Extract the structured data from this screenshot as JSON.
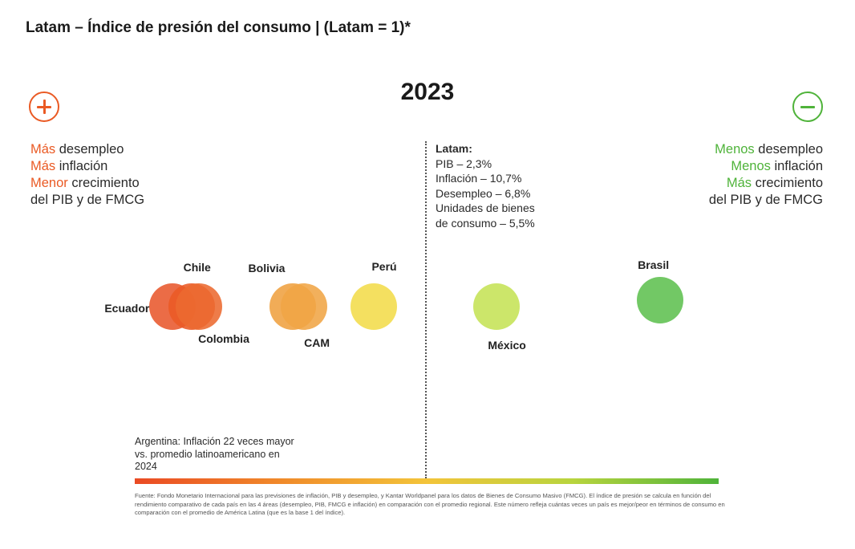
{
  "title": "Latam – Índice de presión del consumo |  (Latam = 1)*",
  "year": "2023",
  "legend_left": {
    "line1_accent": "Más",
    "line1_rest": " desempleo",
    "line2_accent": "Más",
    "line2_rest": " inflación",
    "line3_accent": "Menor",
    "line3_rest": " crecimiento",
    "line4": "del PIB y de FMCG"
  },
  "legend_right": {
    "line1_accent": "Menos",
    "line1_rest": " desempleo",
    "line2_accent": "Menos",
    "line2_rest": " inflación",
    "line3_accent": "Más",
    "line3_rest": " crecimiento",
    "line4": "del PIB y de FMCG"
  },
  "latam": {
    "label": "Latam:",
    "pib": "PIB – 2,3%",
    "inflacion": "Inflación – 10,7%",
    "desempleo": "Desempleo – 6,8%",
    "unidades_1": "Unidades de bienes",
    "unidades_2": "de consumo – 5,5%"
  },
  "argentina_note": "Argentina: Inflación 22 veces mayor vs. promedio latinoamericano en 2024",
  "source": "Fuente: Fondo Monetario Internacional para las previsiones de inflación, PIB y desempleo, y Kantar Worldpanel para los datos de Bienes de Consumo Masivo (FMCG). El índice de presión se calcula en función del rendimiento comparativo de cada país en las 4 áreas (desempleo, PIB, FMCG e inflación) en comparación con el promedio regional. Este número refleja cuántas veces un país es mejor/peor en términos de consumo en comparación con el promedio de América Latina (que es la base 1 del índice).",
  "colors": {
    "negative": "#ea5a24",
    "positive": "#4fb33a"
  },
  "chart_data": {
    "type": "scatter",
    "xlim": [
      0,
      1
    ],
    "x_axis_note": "horizontal position relative to Latam = 1 (left: more pressure, right: less pressure); center line = Latam",
    "points": [
      {
        "name": "Ecuador",
        "x": 0.065,
        "y": 0.0,
        "color": "#e8582c"
      },
      {
        "name": "Chile",
        "x": 0.097,
        "y": 0.0,
        "color": "#eb5a25"
      },
      {
        "name": "Colombia",
        "x": 0.11,
        "y": 0.0,
        "color": "#ec6a30"
      },
      {
        "name": "Bolivia",
        "x": 0.27,
        "y": 0.0,
        "color": "#efa040"
      },
      {
        "name": "CAM",
        "x": 0.29,
        "y": 0.0,
        "color": "#f0a545"
      },
      {
        "name": "Perú",
        "x": 0.41,
        "y": 0.0,
        "color": "#f3dc4a"
      },
      {
        "name": "México",
        "x": 0.62,
        "y": 0.0,
        "color": "#c5e255"
      },
      {
        "name": "Brasil",
        "x": 0.9,
        "y": 0.01,
        "color": "#5ec050"
      }
    ]
  }
}
